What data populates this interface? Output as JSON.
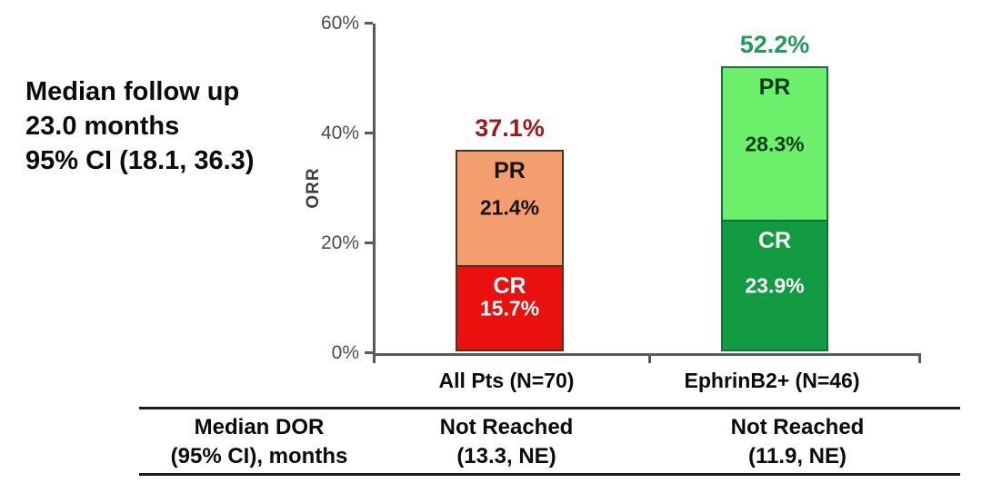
{
  "annotation": {
    "line1": "Median follow up",
    "line2": "23.0 months",
    "line3": "95% CI (18.1, 36.3)"
  },
  "chart_data": {
    "type": "bar",
    "stacked": true,
    "ylabel": "ORR",
    "ylim": [
      0,
      60
    ],
    "grid": false,
    "yticks": [
      {
        "value": 0,
        "label": "0%"
      },
      {
        "value": 20,
        "label": "20%"
      },
      {
        "value": 40,
        "label": "40%"
      },
      {
        "value": 60,
        "label": "60%"
      }
    ],
    "categories": [
      "All Pts (N=70)",
      "EphrinB2+ (N=46)"
    ],
    "series": [
      {
        "name": "CR",
        "values": [
          15.7,
          23.9
        ],
        "labels": [
          "15.7%",
          "23.9%"
        ],
        "colors": [
          "#e9100e",
          "#129b40"
        ],
        "text_colors": [
          "#ffffff",
          "#ffffff"
        ]
      },
      {
        "name": "PR",
        "values": [
          21.4,
          28.3
        ],
        "labels": [
          "21.4%",
          "28.3%"
        ],
        "colors": [
          "#f49d6e",
          "#6cf06c"
        ],
        "text_colors": [
          "#161310",
          "#093c1c"
        ]
      }
    ],
    "totals": {
      "values": [
        37.1,
        52.2
      ],
      "labels": [
        "37.1%",
        "52.2%"
      ],
      "colors": [
        "#9e1a1a",
        "#239b58"
      ]
    },
    "bar_border_colors": [
      "#4d3222",
      "#15703a"
    ]
  },
  "table": {
    "row_header": {
      "line1": "Median DOR",
      "line2": "(95% CI), months"
    },
    "cells": [
      {
        "line1": "Not Reached",
        "line2": "(13.3, NE)"
      },
      {
        "line1": "Not Reached",
        "line2": "(11.9, NE)"
      }
    ]
  }
}
